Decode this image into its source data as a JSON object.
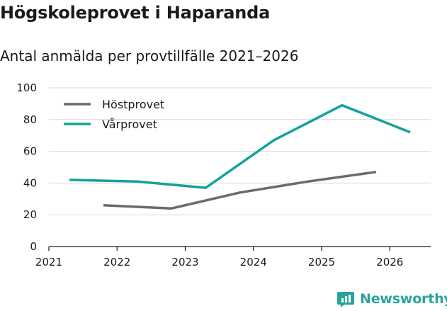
{
  "title": "Högskoleprovet i Haparanda",
  "subtitle": "Antal anmälda per provtillfälle 2021–2026",
  "brand": "Newsworthy",
  "colors": {
    "hostprovet": "#6b6a70",
    "varprovet": "#13a39a",
    "grid": "#d9d9d9",
    "axis": "#1a1a1a",
    "brand": "#2aa39a"
  },
  "chart_data": {
    "type": "line",
    "title": "Högskoleprovet i Haparanda",
    "subtitle": "Antal anmälda per provtillfälle 2021–2026",
    "xlabel": "",
    "ylabel": "",
    "xlim": [
      2021,
      2026.6
    ],
    "ylim": [
      0,
      100
    ],
    "x_ticks": [
      2021,
      2022,
      2023,
      2024,
      2025,
      2026
    ],
    "y_ticks": [
      0,
      20,
      40,
      60,
      80,
      100
    ],
    "grid": "horizontal",
    "legend": "top-left",
    "series": [
      {
        "name": "Höstprovet",
        "color": "#6b6a70",
        "x": [
          2021.8,
          2022.8,
          2023.8,
          2024.8,
          2025.8
        ],
        "values": [
          26,
          24,
          34,
          41,
          47
        ]
      },
      {
        "name": "Vårprovet",
        "color": "#13a39a",
        "x": [
          2021.3,
          2022.3,
          2023.3,
          2024.3,
          2025.3,
          2026.3
        ],
        "values": [
          42,
          41,
          37,
          67,
          89,
          72
        ]
      }
    ]
  }
}
